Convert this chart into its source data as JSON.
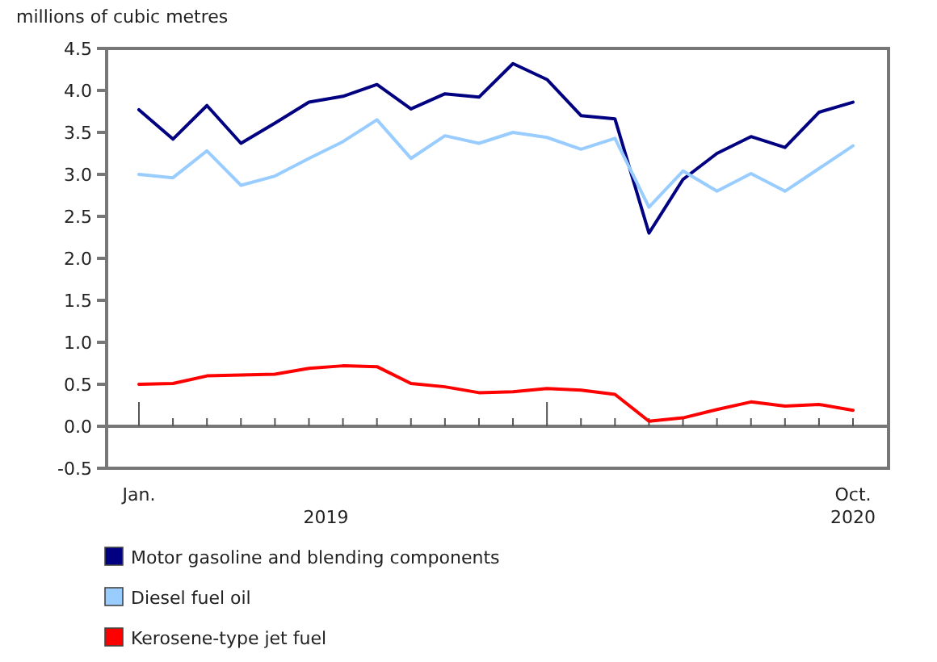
{
  "chart_data": {
    "type": "line",
    "ylabel": "millions of cubic metres",
    "categories": [
      "Jan.",
      null,
      null,
      null,
      null,
      null,
      null,
      null,
      null,
      null,
      null,
      null,
      null,
      null,
      null,
      null,
      null,
      null,
      null,
      null,
      null,
      "Oct."
    ],
    "annotations": [
      "2019",
      "2020"
    ],
    "series": [
      {
        "name": "Motor gasoline and blending components",
        "color": "#000080",
        "values": [
          3.77,
          3.42,
          3.82,
          3.37,
          3.61,
          3.86,
          3.93,
          4.07,
          3.78,
          3.96,
          3.92,
          4.32,
          4.13,
          3.7,
          3.66,
          2.3,
          2.94,
          3.25,
          3.45,
          3.32,
          3.74,
          3.86
        ]
      },
      {
        "name": "Diesel fuel oil",
        "color": "#99ccff",
        "values": [
          3.0,
          2.96,
          3.28,
          2.87,
          2.98,
          3.19,
          3.39,
          3.65,
          3.19,
          3.46,
          3.37,
          3.5,
          3.44,
          3.3,
          3.43,
          2.61,
          3.04,
          2.8,
          3.01,
          2.8,
          3.07,
          3.34
        ]
      },
      {
        "name": "Kerosene-type jet fuel",
        "color": "#ff0000",
        "values": [
          0.5,
          0.51,
          0.6,
          0.61,
          0.62,
          0.69,
          0.72,
          0.71,
          0.51,
          0.47,
          0.4,
          0.41,
          0.45,
          0.43,
          0.38,
          0.06,
          0.1,
          0.2,
          0.29,
          0.24,
          0.26,
          0.19
        ]
      }
    ],
    "ylim": [
      -0.5,
      4.5
    ],
    "yticks": [
      {
        "value": -0.5,
        "label": "-0.5"
      },
      {
        "value": 0,
        "label": "0.0"
      },
      {
        "value": 0.5,
        "label": "0.5"
      },
      {
        "value": 1,
        "label": "1.0"
      },
      {
        "value": 1.5,
        "label": "1.5"
      },
      {
        "value": 2,
        "label": "2.0"
      },
      {
        "value": 2.5,
        "label": "2.5"
      },
      {
        "value": 3,
        "label": "3.0"
      },
      {
        "value": 3.5,
        "label": "3.5"
      },
      {
        "value": 4,
        "label": "4.0"
      },
      {
        "value": 4.5,
        "label": "4.5"
      }
    ],
    "legend": "bottom",
    "line_style": "solid"
  }
}
